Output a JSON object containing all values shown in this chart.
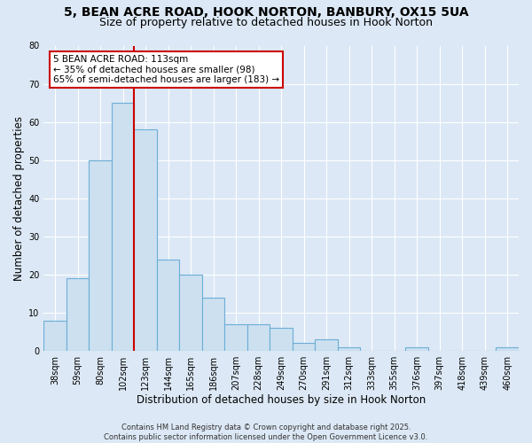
{
  "title1": "5, BEAN ACRE ROAD, HOOK NORTON, BANBURY, OX15 5UA",
  "title2": "Size of property relative to detached houses in Hook Norton",
  "xlabel": "Distribution of detached houses by size in Hook Norton",
  "ylabel": "Number of detached properties",
  "categories": [
    "38sqm",
    "59sqm",
    "80sqm",
    "102sqm",
    "123sqm",
    "144sqm",
    "165sqm",
    "186sqm",
    "207sqm",
    "228sqm",
    "249sqm",
    "270sqm",
    "291sqm",
    "312sqm",
    "333sqm",
    "355sqm",
    "376sqm",
    "397sqm",
    "418sqm",
    "439sqm",
    "460sqm"
  ],
  "values": [
    8,
    19,
    50,
    65,
    58,
    24,
    20,
    14,
    7,
    7,
    6,
    2,
    3,
    1,
    0,
    0,
    1,
    0,
    0,
    0,
    1
  ],
  "bar_color": "#cce0f0",
  "bar_edge_color": "#6baed6",
  "vline_color": "#cc0000",
  "vline_pos": 3.5,
  "annotation_text": "5 BEAN ACRE ROAD: 113sqm\n← 35% of detached houses are smaller (98)\n65% of semi-detached houses are larger (183) →",
  "annotation_box_color": "white",
  "annotation_box_edge": "#cc0000",
  "ylim": [
    0,
    80
  ],
  "yticks": [
    0,
    10,
    20,
    30,
    40,
    50,
    60,
    70,
    80
  ],
  "background_color": "#dce8f5",
  "plot_bg_color": "#dce8f5",
  "footer": "Contains HM Land Registry data © Crown copyright and database right 2025.\nContains public sector information licensed under the Open Government Licence v3.0.",
  "title_fontsize": 10,
  "subtitle_fontsize": 9,
  "tick_fontsize": 7,
  "label_fontsize": 8.5,
  "ann_fontsize": 7.5,
  "footer_fontsize": 6
}
